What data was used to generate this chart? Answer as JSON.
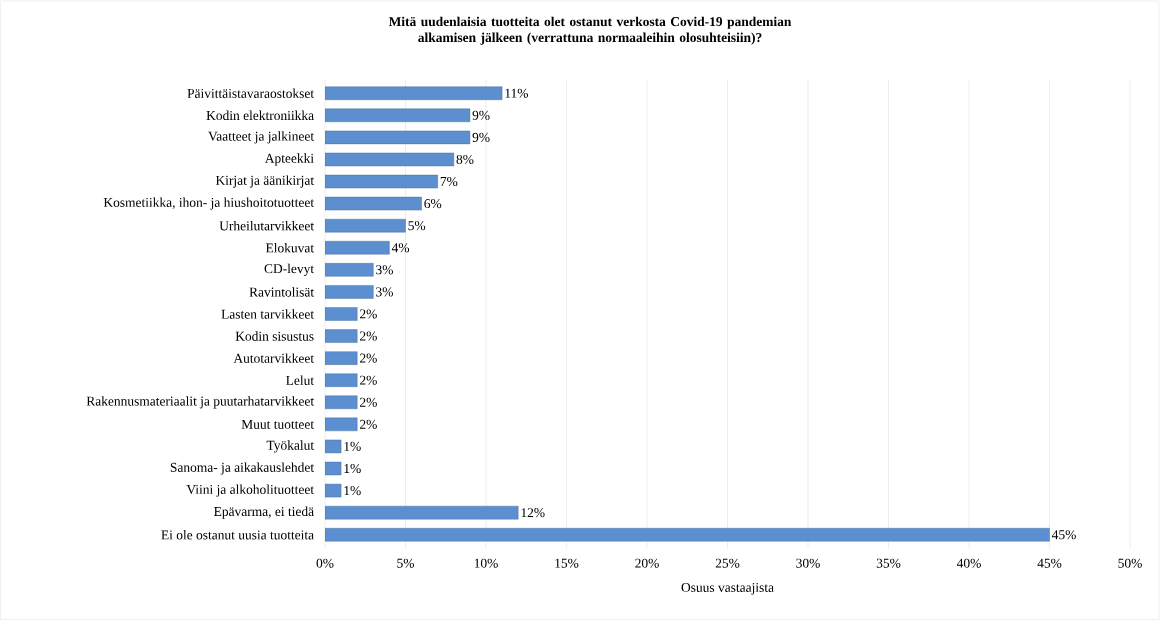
{
  "chart_data": {
    "type": "bar",
    "orientation": "horizontal",
    "title": "Mitä uudenlaisia tuotteita olet ostanut verkosta Covid-19 pandemian alkamisen jälkeen (verrattuna normaaleihin olosuhteisiin)?",
    "xlabel": "Osuus vastaajista",
    "categories": [
      "Päivittäistavaraostokset",
      "Kodin elektroniikka",
      "Vaatteet ja jalkineet",
      "Apteekki",
      "Kirjat ja äänikirjat",
      "Kosmetiikka, ihon- ja hiushoitotuotteet",
      "Urheilutarvikkeet",
      "Elokuvat",
      "CD-levyt",
      "Ravintolisät",
      "Lasten tarvikkeet",
      "Kodin sisustus",
      "Autotarvikkeet",
      "Lelut",
      "Rakennusmateriaalit ja puutarhatarvikkeet",
      "Muut tuotteet",
      "Työkalut",
      "Sanoma- ja aikakauslehdet",
      "Viini ja alkoholituotteet",
      "Epävarma, ei tiedä",
      "Ei ole ostanut uusia tuotteita"
    ],
    "values": [
      11,
      9,
      9,
      8,
      7,
      6,
      5,
      4,
      3,
      3,
      2,
      2,
      2,
      2,
      2,
      2,
      1,
      1,
      1,
      12,
      45
    ],
    "value_labels": [
      "11%",
      "9%",
      "9%",
      "8%",
      "7%",
      "6%",
      "5%",
      "4%",
      "3%",
      "3%",
      "2%",
      "2%",
      "2%",
      "2%",
      "2%",
      "2%",
      "1%",
      "1%",
      "1%",
      "12%",
      "45%"
    ],
    "color": "#5b8fd0",
    "xlim": [
      0,
      50
    ],
    "xticks": [
      {
        "value": 0,
        "label": "0%"
      },
      {
        "value": 5,
        "label": "5%"
      },
      {
        "value": 10,
        "label": "10%"
      },
      {
        "value": 15,
        "label": "15%"
      },
      {
        "value": 20,
        "label": "20%"
      },
      {
        "value": 25,
        "label": "25%"
      },
      {
        "value": 30,
        "label": "30%"
      },
      {
        "value": 35,
        "label": "35%"
      },
      {
        "value": 40,
        "label": "40%"
      },
      {
        "value": 45,
        "label": "45%"
      },
      {
        "value": 50,
        "label": "50%"
      }
    ],
    "grid": "x"
  }
}
